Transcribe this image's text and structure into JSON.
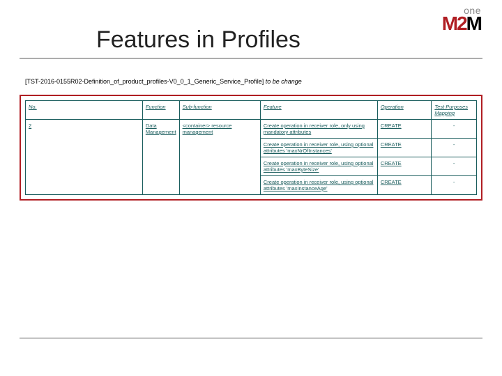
{
  "logo": {
    "line1": "one",
    "line2_red": "M2",
    "line2_black": "M"
  },
  "title": "Features in Profiles",
  "caption": {
    "bracket": "[TST-2016-0155R02-Definition_of_product_profiles-V0_0_1_Generic_Service_Profile]",
    "italic": " to be change"
  },
  "table": {
    "headers": [
      "No.",
      "Function",
      "Sub-function",
      "Feature",
      "Operation",
      "Test Purposes Mapping"
    ],
    "group": {
      "no": "2",
      "function": "Data Management",
      "subfunction": "<container> resource management",
      "rows": [
        {
          "feature": "Create operation in receiver role, only using mandatory attributes",
          "operation": "CREATE",
          "mapping": "-"
        },
        {
          "feature": "Create operation in receiver role, using optional attributes 'maxNrOfInstances'",
          "operation": "CREATE",
          "mapping": "-"
        },
        {
          "feature": "Create operation in receiver role, using optional attributes 'maxByteSize'",
          "operation": "CREATE",
          "mapping": "-"
        },
        {
          "feature": "Create operation in receiver role, using optional attributes 'maxInstanceAge'",
          "operation": "CREATE",
          "mapping": "-"
        }
      ]
    }
  },
  "colors": {
    "brand_red": "#b01e23",
    "table_text": "#1a5d5d",
    "rule_gray": "#555555"
  }
}
